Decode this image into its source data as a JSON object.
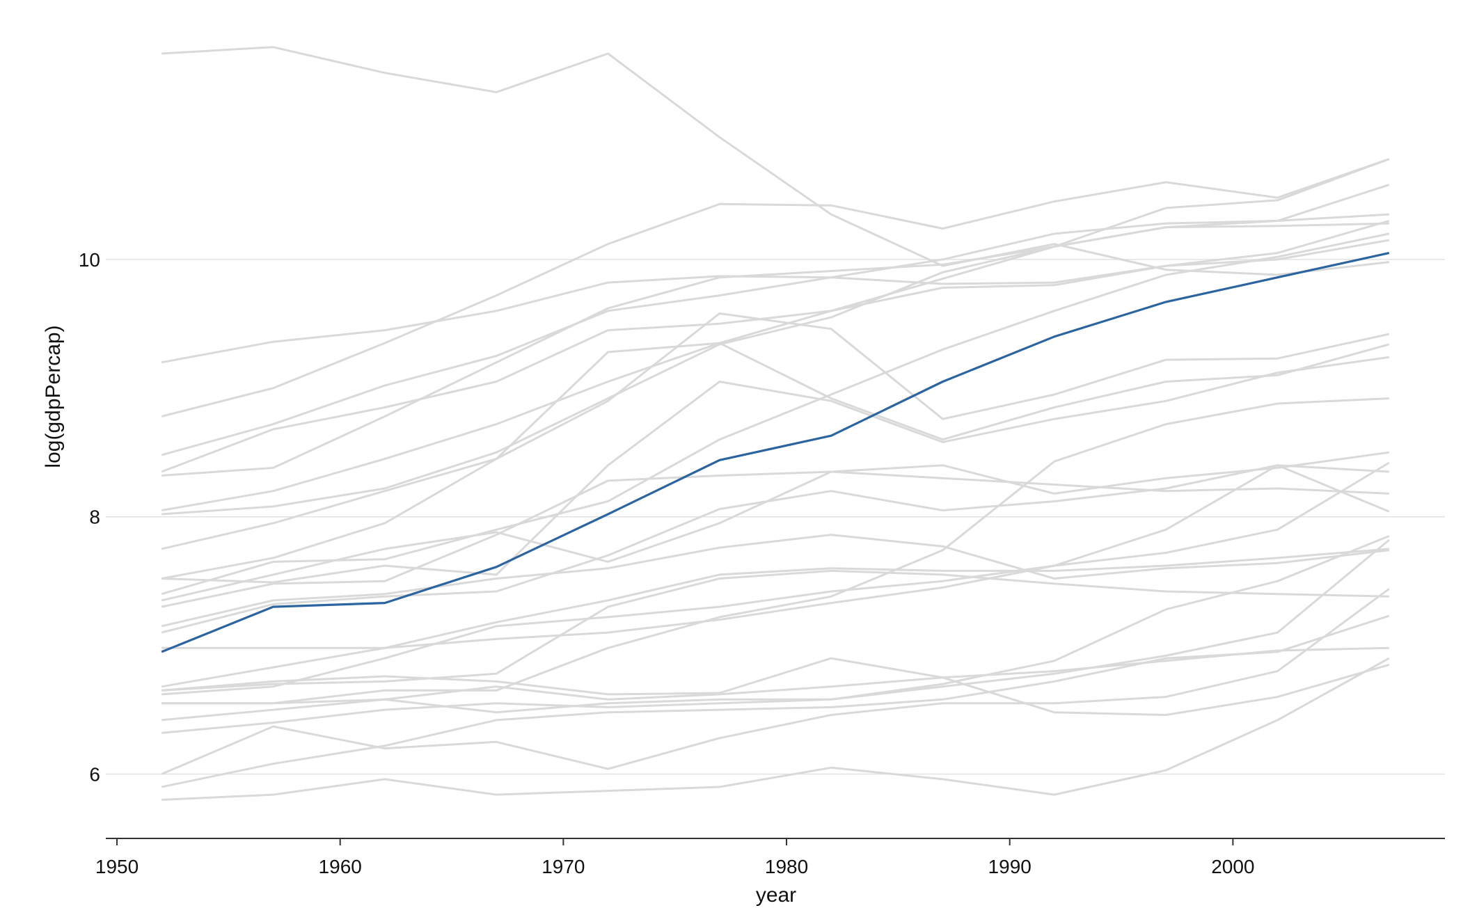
{
  "chart_data": {
    "type": "line",
    "title": "",
    "xlabel": "year",
    "ylabel": "log(gdpPercap)",
    "xlim": [
      1949.5,
      2009.5
    ],
    "ylim": [
      5.5,
      11.8
    ],
    "xticks": [
      1950,
      1960,
      1970,
      1980,
      1990,
      2000
    ],
    "yticks": [
      6,
      8,
      10
    ],
    "grid": {
      "horizontal": true,
      "vertical": false
    },
    "colors": {
      "background_series": "#d9d9d9",
      "highlight": "#2c64a0",
      "gridline": "#e2e2e2",
      "axis": "#333333"
    },
    "x": [
      1952,
      1957,
      1962,
      1967,
      1972,
      1977,
      1982,
      1987,
      1992,
      1997,
      2002,
      2007
    ],
    "highlight": {
      "values": [
        6.95,
        7.3,
        7.33,
        7.61,
        8.02,
        8.44,
        8.63,
        9.05,
        9.4,
        9.67,
        9.86,
        10.05
      ]
    },
    "series": [
      {
        "values": [
          11.6,
          11.65,
          11.45,
          11.3,
          11.6,
          10.95,
          10.35,
          9.95,
          10.12,
          9.92,
          9.88,
          9.98
        ]
      },
      {
        "values": [
          9.2,
          9.36,
          9.45,
          9.6,
          9.82,
          9.87,
          9.86,
          9.81,
          9.82,
          9.95,
          10.05,
          10.3
        ]
      },
      {
        "values": [
          8.78,
          9.0,
          9.35,
          9.72,
          10.12,
          10.43,
          10.42,
          10.24,
          10.45,
          10.6,
          10.48,
          10.78
        ]
      },
      {
        "values": [
          8.48,
          8.72,
          9.02,
          9.25,
          9.6,
          9.72,
          9.86,
          10.0,
          10.2,
          10.28,
          10.3,
          10.35
        ]
      },
      {
        "values": [
          8.35,
          8.68,
          8.85,
          9.05,
          9.45,
          9.5,
          9.6,
          9.78,
          9.8,
          9.95,
          10.0,
          10.15
        ]
      },
      {
        "values": [
          8.32,
          8.38,
          8.78,
          9.2,
          9.62,
          9.86,
          9.91,
          9.96,
          10.1,
          10.25,
          10.26,
          10.28
        ]
      },
      {
        "values": [
          8.05,
          8.2,
          8.45,
          8.72,
          9.05,
          9.35,
          9.6,
          9.85,
          10.1,
          10.4,
          10.46,
          10.78
        ]
      },
      {
        "values": [
          8.02,
          8.08,
          8.22,
          8.5,
          8.92,
          9.34,
          9.55,
          9.9,
          10.1,
          10.25,
          10.3,
          10.58
        ]
      },
      {
        "values": [
          7.75,
          7.95,
          8.2,
          8.45,
          8.9,
          9.58,
          9.46,
          8.76,
          8.95,
          9.22,
          9.23,
          9.42
        ]
      },
      {
        "values": [
          7.52,
          7.68,
          7.95,
          8.45,
          9.28,
          9.35,
          8.92,
          8.6,
          8.85,
          9.05,
          9.1,
          9.34
        ]
      },
      {
        "values": [
          7.52,
          7.49,
          7.62,
          7.55,
          8.4,
          9.05,
          8.9,
          8.58,
          8.76,
          8.9,
          9.12,
          9.24
        ]
      },
      {
        "values": [
          7.4,
          7.65,
          7.67,
          7.9,
          8.12,
          8.6,
          8.95,
          9.3,
          9.6,
          9.88,
          10.02,
          10.2
        ]
      },
      {
        "values": [
          7.35,
          7.55,
          7.75,
          7.88,
          7.65,
          7.95,
          8.35,
          8.4,
          8.18,
          8.3,
          8.38,
          8.5
        ]
      },
      {
        "values": [
          7.3,
          7.48,
          7.5,
          7.86,
          8.28,
          8.32,
          8.35,
          8.3,
          8.25,
          8.2,
          8.22,
          8.18
        ]
      },
      {
        "values": [
          7.15,
          7.35,
          7.4,
          7.52,
          7.6,
          7.76,
          7.86,
          7.77,
          7.52,
          7.6,
          7.64,
          7.74
        ]
      },
      {
        "values": [
          7.1,
          7.32,
          7.38,
          7.42,
          7.7,
          8.06,
          8.2,
          8.05,
          8.12,
          8.22,
          8.4,
          8.35
        ]
      },
      {
        "values": [
          6.98,
          6.98,
          6.98,
          7.05,
          7.1,
          7.2,
          7.33,
          7.45,
          7.62,
          7.9,
          8.4,
          8.04
        ]
      },
      {
        "values": [
          6.68,
          6.83,
          6.98,
          7.18,
          7.35,
          7.55,
          7.6,
          7.58,
          7.58,
          7.62,
          7.68,
          7.75
        ]
      },
      {
        "values": [
          6.65,
          6.72,
          6.76,
          6.72,
          6.62,
          6.63,
          6.9,
          6.75,
          6.48,
          6.46,
          6.6,
          6.85
        ]
      },
      {
        "values": [
          6.65,
          6.7,
          6.72,
          6.78,
          7.3,
          7.52,
          7.58,
          7.55,
          7.48,
          7.42,
          7.4,
          7.38
        ]
      },
      {
        "values": [
          6.62,
          6.68,
          6.9,
          7.15,
          7.22,
          7.3,
          7.42,
          7.5,
          7.62,
          7.72,
          7.9,
          8.42
        ]
      },
      {
        "values": [
          6.55,
          6.55,
          6.58,
          6.68,
          6.58,
          6.62,
          6.68,
          6.75,
          6.8,
          6.88,
          6.96,
          6.98
        ]
      },
      {
        "values": [
          6.55,
          6.55,
          6.65,
          6.65,
          6.98,
          7.22,
          7.38,
          7.74,
          8.43,
          8.72,
          8.88,
          8.92
        ]
      },
      {
        "values": [
          6.42,
          6.5,
          6.58,
          6.48,
          6.55,
          6.58,
          6.58,
          6.7,
          6.88,
          7.28,
          7.5,
          7.85
        ]
      },
      {
        "values": [
          6.32,
          6.4,
          6.5,
          6.55,
          6.52,
          6.55,
          6.58,
          6.68,
          6.78,
          6.92,
          7.1,
          7.82
        ]
      },
      {
        "values": [
          6.0,
          6.37,
          6.2,
          6.25,
          6.04,
          6.28,
          6.46,
          6.55,
          6.55,
          6.6,
          6.8,
          7.44
        ]
      },
      {
        "values": [
          5.9,
          6.08,
          6.22,
          6.42,
          6.48,
          6.5,
          6.52,
          6.58,
          6.72,
          6.9,
          6.95,
          7.23
        ]
      },
      {
        "values": [
          5.8,
          5.84,
          5.96,
          5.84,
          5.87,
          5.9,
          6.05,
          5.96,
          5.84,
          6.03,
          6.42,
          6.9
        ]
      }
    ]
  }
}
